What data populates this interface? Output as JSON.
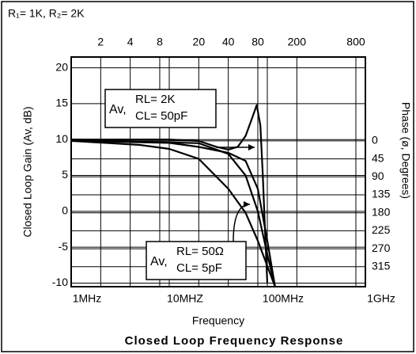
{
  "chart_data": {
    "type": "line",
    "title": "R₁= 1K, R₂= 2K",
    "xlabel": "Frequency",
    "ylabel": "Closed Loop Gain (Av, dB)",
    "y2label": "Phase (ø, Degrees)",
    "caption": "Closed Loop Frequency Response",
    "xscale": "log",
    "xlim": [
      1,
      1000
    ],
    "xticks": [
      {
        "value": 1,
        "label": "1MHz"
      },
      {
        "value": 10,
        "label": "10MHZ"
      },
      {
        "value": 100,
        "label": "100MHz"
      },
      {
        "value": 1000,
        "label": "1GHz"
      }
    ],
    "x2ticks": [
      2,
      4,
      8,
      20,
      40,
      80,
      200,
      800
    ],
    "ylim": [
      -10.5,
      21.5
    ],
    "yticks": [
      -10,
      -5,
      0,
      5,
      10,
      15,
      20
    ],
    "y2lim": [
      365,
      -210
    ],
    "y2ticks": [
      0,
      45,
      90,
      135,
      180,
      225,
      270,
      315
    ],
    "grid": true,
    "series": [
      {
        "color": "#000000",
        "x": [
          1,
          10,
          20,
          30,
          40,
          50,
          60,
          70,
          78,
          85,
          90,
          95,
          100
        ],
        "values": [
          10,
          10,
          9.8,
          9,
          8.6,
          9,
          10.5,
          13,
          14.8,
          12,
          5,
          -3,
          -10
        ]
      },
      {
        "color": "#000000",
        "x": [
          1,
          10,
          20,
          40,
          60,
          80,
          100,
          120
        ],
        "values": [
          0,
          5,
          15,
          30,
          50,
          120,
          250,
          365
        ],
        "axis": "y2"
      },
      {
        "color": "#000000",
        "x": [
          1,
          20,
          40,
          60,
          80,
          100,
          120
        ],
        "values": [
          10,
          9.5,
          8,
          5,
          0,
          -6,
          -10.5
        ]
      },
      {
        "color": "#000000",
        "x": [
          1,
          5,
          10,
          20,
          40,
          60,
          80,
          120
        ],
        "values": [
          0,
          10,
          20,
          45,
          120,
          180,
          250,
          365
        ],
        "axis": "y2"
      }
    ],
    "annotations": [
      {
        "lines": [
          "Av,",
          "RL= 2K",
          "CL= 50pF"
        ]
      },
      {
        "lines": [
          "Av,",
          "RL= 50Ω",
          "CL= 5pF"
        ]
      }
    ]
  }
}
